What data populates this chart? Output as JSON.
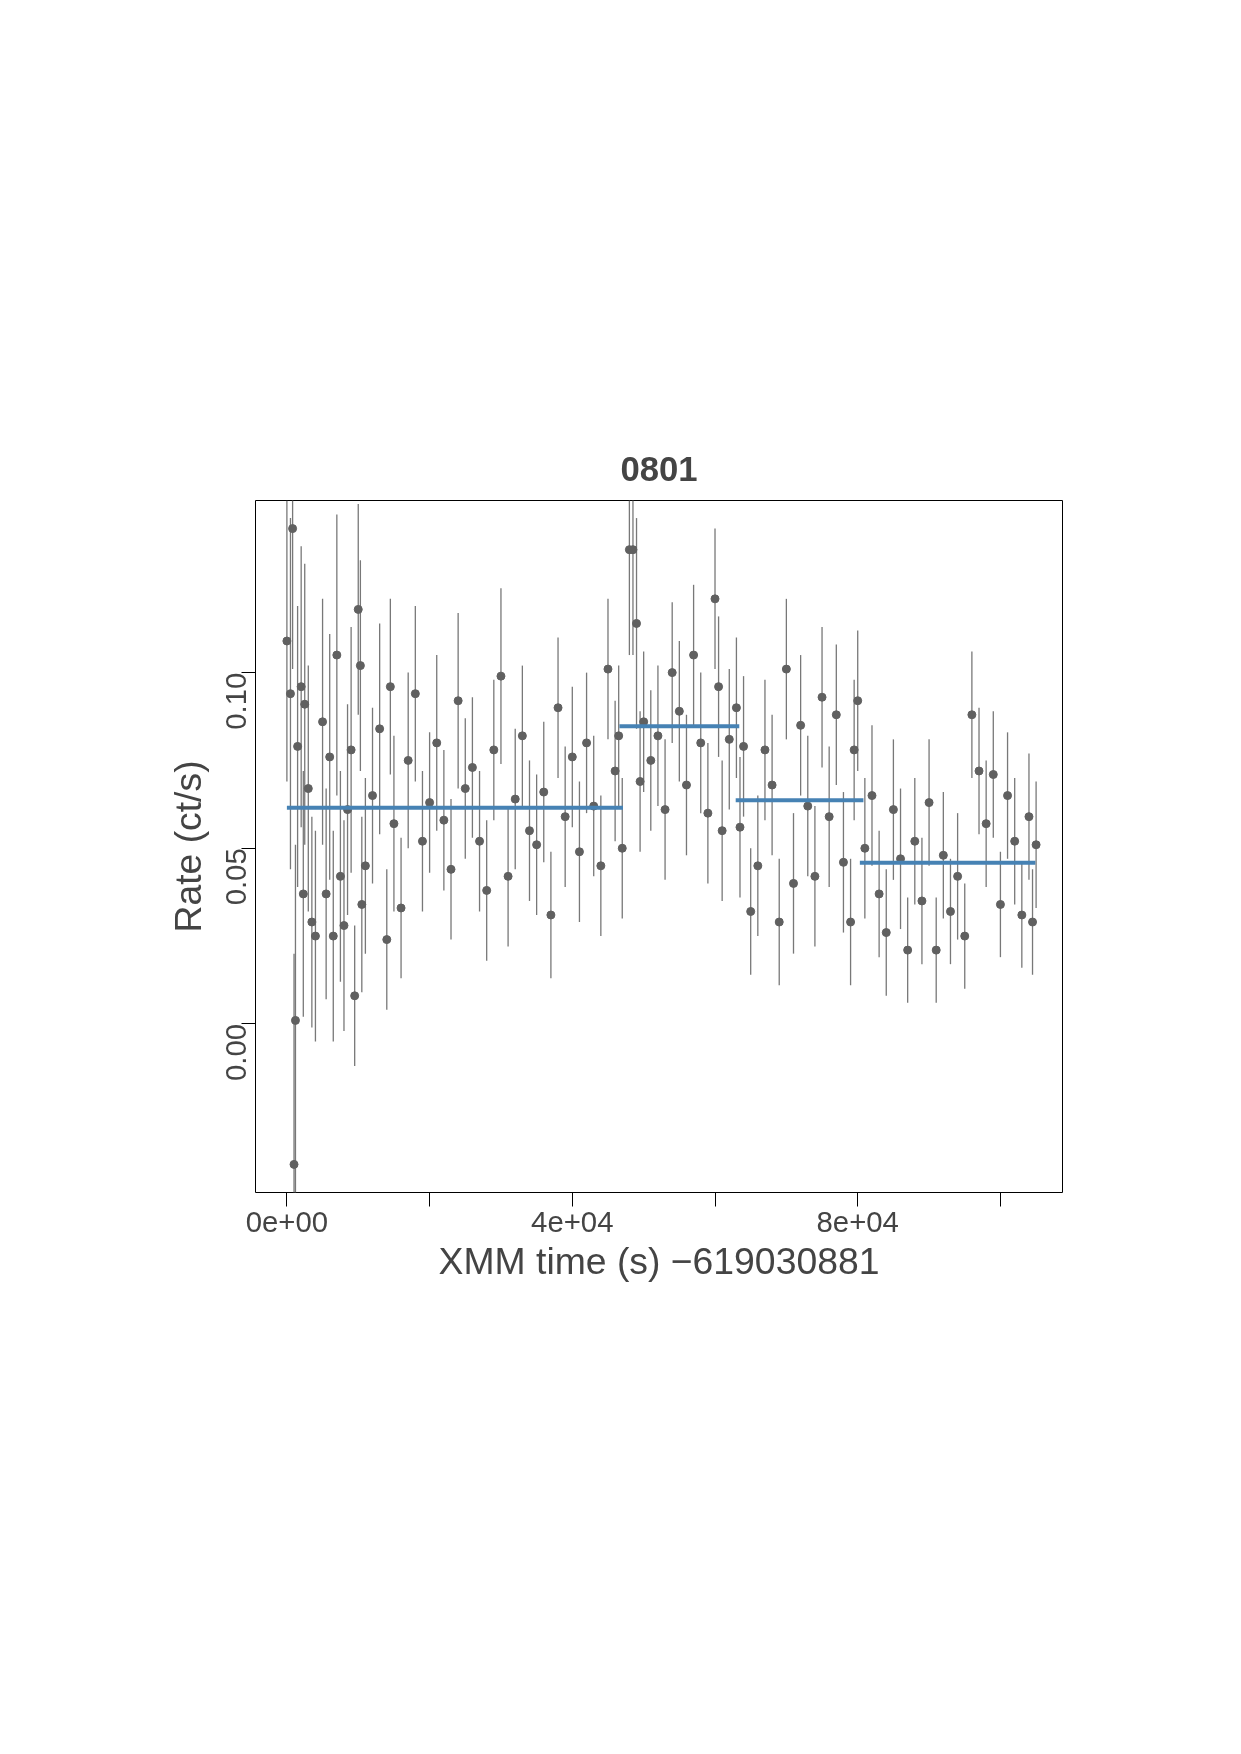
{
  "chart_data": {
    "type": "scatter",
    "title": "0801",
    "xlabel": "XMM time (s) −619030881",
    "ylabel": "Rate (ct/s)",
    "xlim": [
      -4400,
      108700
    ],
    "ylim": [
      -0.048,
      0.149
    ],
    "xticks": [
      {
        "value": 0,
        "label": "0e+00"
      },
      {
        "value": 20000,
        "label": null
      },
      {
        "value": 40000,
        "label": "4e+04"
      },
      {
        "value": 60000,
        "label": null
      },
      {
        "value": 80000,
        "label": "8e+04"
      },
      {
        "value": 100000,
        "label": null
      }
    ],
    "yticks": [
      {
        "value": 0,
        "label": "0.00"
      },
      {
        "value": 0.05,
        "label": "0.05"
      },
      {
        "value": 0.1,
        "label": "0.10"
      }
    ],
    "grid": false,
    "series": [
      {
        "marker": "circle",
        "color": "#606060",
        "x": [
          0,
          500,
          800,
          1000,
          1200,
          1500,
          2000,
          2300,
          2500,
          3000,
          3500,
          4000,
          5000,
          5500,
          6000,
          6500,
          7000,
          7500,
          8000,
          8500,
          9000,
          9500,
          10000,
          10300,
          10500,
          11000,
          12000,
          13000,
          14000,
          14500,
          15000,
          16000,
          17000,
          18000,
          19000,
          20000,
          21000,
          22000,
          23000,
          24000,
          25000,
          26000,
          27000,
          28000,
          29000,
          30000,
          31000,
          32000,
          33000,
          34000,
          35000,
          36000,
          37000,
          38000,
          39000,
          40000,
          41000,
          42000,
          43000,
          44000,
          45000,
          46000,
          46500,
          47000,
          48000,
          48500,
          49000,
          49500,
          50000,
          51000,
          52000,
          53000,
          54000,
          55000,
          56000,
          57000,
          58000,
          59000,
          60000,
          60500,
          61000,
          62000,
          63000,
          63500,
          64000,
          65000,
          66000,
          67000,
          68000,
          69000,
          70000,
          71000,
          72000,
          73000,
          74000,
          75000,
          76000,
          77000,
          78000,
          79000,
          79500,
          80000,
          81000,
          82000,
          83000,
          84000,
          85000,
          86000,
          87000,
          88000,
          89000,
          90000,
          91000,
          92000,
          93000,
          94000,
          95000,
          96000,
          97000,
          98000,
          99000,
          100000,
          101000,
          102000,
          103000,
          104000,
          104500,
          105000
        ],
        "values": [
          0.109,
          0.094,
          0.141,
          -0.04,
          0.001,
          0.079,
          0.096,
          0.037,
          0.091,
          0.067,
          0.029,
          0.025,
          0.086,
          0.037,
          0.076,
          0.025,
          0.105,
          0.042,
          0.028,
          0.061,
          0.078,
          0.008,
          0.118,
          0.102,
          0.034,
          0.045,
          0.065,
          0.084,
          0.024,
          0.096,
          0.057,
          0.033,
          0.075,
          0.094,
          0.052,
          0.063,
          0.08,
          0.058,
          0.044,
          0.092,
          0.067,
          0.073,
          0.052,
          0.038,
          0.078,
          0.099,
          0.042,
          0.064,
          0.082,
          0.055,
          0.051,
          0.066,
          0.031,
          0.09,
          0.059,
          0.076,
          0.049,
          0.08,
          0.062,
          0.045,
          0.101,
          0.072,
          0.082,
          0.05,
          0.135,
          0.135,
          0.114,
          0.069,
          0.086,
          0.075,
          0.082,
          0.061,
          0.1,
          0.089,
          0.068,
          0.105,
          0.08,
          0.06,
          0.121,
          0.096,
          0.055,
          0.081,
          0.09,
          0.056,
          0.079,
          0.032,
          0.045,
          0.078,
          0.068,
          0.029,
          0.101,
          0.04,
          0.085,
          0.062,
          0.042,
          0.093,
          0.059,
          0.088,
          0.046,
          0.029,
          0.078,
          0.092,
          0.05,
          0.065,
          0.037,
          0.026,
          0.061,
          0.047,
          0.021,
          0.052,
          0.035,
          0.063,
          0.021,
          0.048,
          0.032,
          0.042,
          0.025,
          0.088,
          0.072,
          0.057,
          0.071,
          0.034,
          0.065,
          0.052,
          0.031,
          0.059,
          0.029,
          0.051
        ],
        "errors": [
          0.04,
          0.05,
          0.04,
          0.06,
          0.05,
          0.04,
          0.04,
          0.035,
          0.04,
          0.035,
          0.03,
          0.03,
          0.035,
          0.03,
          0.035,
          0.03,
          0.04,
          0.03,
          0.03,
          0.03,
          0.035,
          0.02,
          0.03,
          0.03,
          0.025,
          0.025,
          0.025,
          0.03,
          0.02,
          0.025,
          0.025,
          0.02,
          0.025,
          0.025,
          0.02,
          0.02,
          0.025,
          0.02,
          0.02,
          0.025,
          0.02,
          0.02,
          0.02,
          0.02,
          0.02,
          0.025,
          0.02,
          0.02,
          0.02,
          0.02,
          0.02,
          0.02,
          0.018,
          0.02,
          0.02,
          0.02,
          0.02,
          0.02,
          0.02,
          0.02,
          0.02,
          0.02,
          0.02,
          0.02,
          0.03,
          0.03,
          0.03,
          0.02,
          0.02,
          0.02,
          0.02,
          0.02,
          0.02,
          0.02,
          0.02,
          0.02,
          0.02,
          0.02,
          0.02,
          0.02,
          0.02,
          0.02,
          0.02,
          0.02,
          0.02,
          0.018,
          0.02,
          0.02,
          0.02,
          0.018,
          0.02,
          0.02,
          0.02,
          0.02,
          0.02,
          0.02,
          0.02,
          0.02,
          0.02,
          0.018,
          0.02,
          0.02,
          0.02,
          0.02,
          0.018,
          0.018,
          0.02,
          0.02,
          0.015,
          0.018,
          0.018,
          0.018,
          0.015,
          0.018,
          0.015,
          0.018,
          0.015,
          0.018,
          0.018,
          0.018,
          0.018,
          0.015,
          0.018,
          0.018,
          0.015,
          0.018,
          0.015,
          0.018
        ]
      },
      {
        "type": "line",
        "color": "#4682b4",
        "x": [
          0,
          47100
        ],
        "values": [
          0.0615,
          0.0615
        ]
      },
      {
        "type": "line",
        "color": "#4682b4",
        "x": [
          46600,
          63400
        ],
        "values": [
          0.0847,
          0.0847
        ]
      },
      {
        "type": "line",
        "color": "#4682b4",
        "x": [
          62900,
          80800
        ],
        "values": [
          0.0637,
          0.0637
        ]
      },
      {
        "type": "line",
        "color": "#4682b4",
        "x": [
          80300,
          104900
        ],
        "values": [
          0.0459,
          0.0459
        ]
      }
    ]
  }
}
